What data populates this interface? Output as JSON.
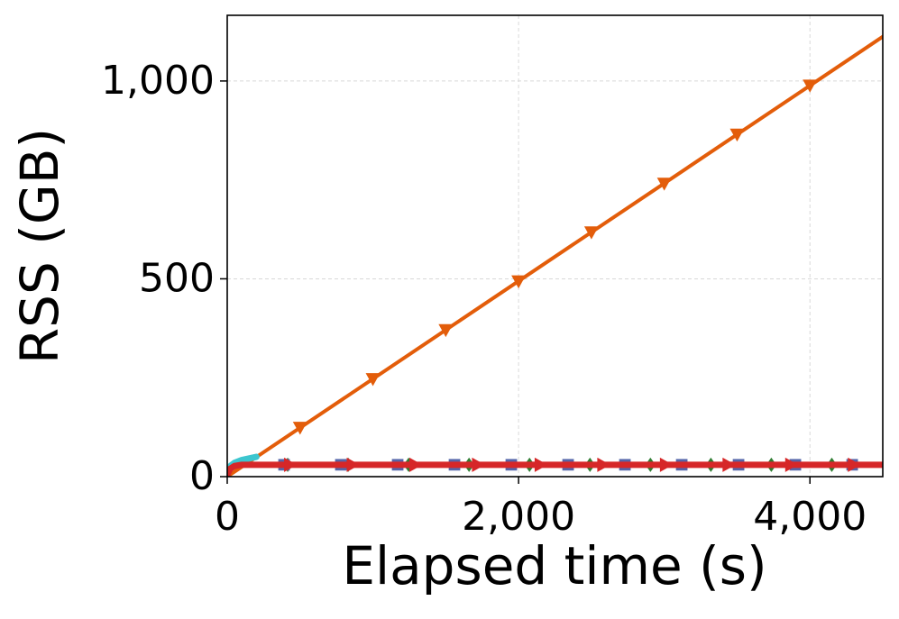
{
  "chart_data": {
    "type": "line",
    "xlabel": "Elapsed time (s)",
    "ylabel": "RSS (GB)",
    "xlim": [
      0,
      4500
    ],
    "ylim": [
      0,
      1166
    ],
    "xticks": [
      0,
      {
        "value": 2000,
        "label": "2,000"
      },
      {
        "value": 4000,
        "label": "4,000"
      }
    ],
    "yticks": [
      0,
      500,
      {
        "value": 1000,
        "label": "1,000"
      }
    ],
    "grid": true,
    "series": [
      {
        "color": "#e35d0a",
        "line": true,
        "marker": "none",
        "x": [
          0,
          4500
        ],
        "values": [
          0,
          1112
        ]
      },
      {
        "color": "#e35d0a",
        "line": false,
        "marker": "v",
        "x": [
          500,
          1000,
          1500,
          2000,
          2500,
          3000,
          3500,
          4000
        ],
        "values": [
          124,
          247,
          371,
          494,
          618,
          741,
          865,
          989
        ]
      },
      {
        "color": "#3cc6cf",
        "line": true,
        "marker": "none",
        "x": [
          0,
          25,
          50,
          100,
          150,
          200
        ],
        "values": [
          15,
          28,
          35,
          42,
          46,
          50
        ]
      },
      {
        "color": "#2e7d32",
        "line": false,
        "marker": "D",
        "x": [
          415,
          830,
          1245,
          1660,
          2075,
          2490,
          2905,
          3320,
          3735,
          4150
        ],
        "values": [
          30,
          30,
          30,
          30,
          30,
          30,
          30,
          30,
          30,
          30
        ]
      },
      {
        "color": "#5566aa",
        "line": false,
        "marker": "s",
        "x": [
          390,
          780,
          1170,
          1560,
          1950,
          2340,
          2730,
          3120,
          3510,
          3900,
          4290
        ],
        "values": [
          30,
          30,
          30,
          30,
          30,
          30,
          30,
          30,
          30,
          30,
          30
        ]
      },
      {
        "color": "#d62728",
        "line": true,
        "marker": "none",
        "x": [
          0,
          20,
          50,
          100,
          200,
          4500
        ],
        "values": [
          5,
          20,
          27,
          30,
          30,
          30
        ]
      },
      {
        "color": "#d62728",
        "line": false,
        "marker": ">",
        "x": [
          430,
          860,
          1290,
          1720,
          2150,
          2580,
          3010,
          3440,
          3870,
          4300
        ],
        "values": [
          30,
          30,
          30,
          30,
          30,
          30,
          30,
          30,
          30,
          30
        ]
      }
    ]
  }
}
